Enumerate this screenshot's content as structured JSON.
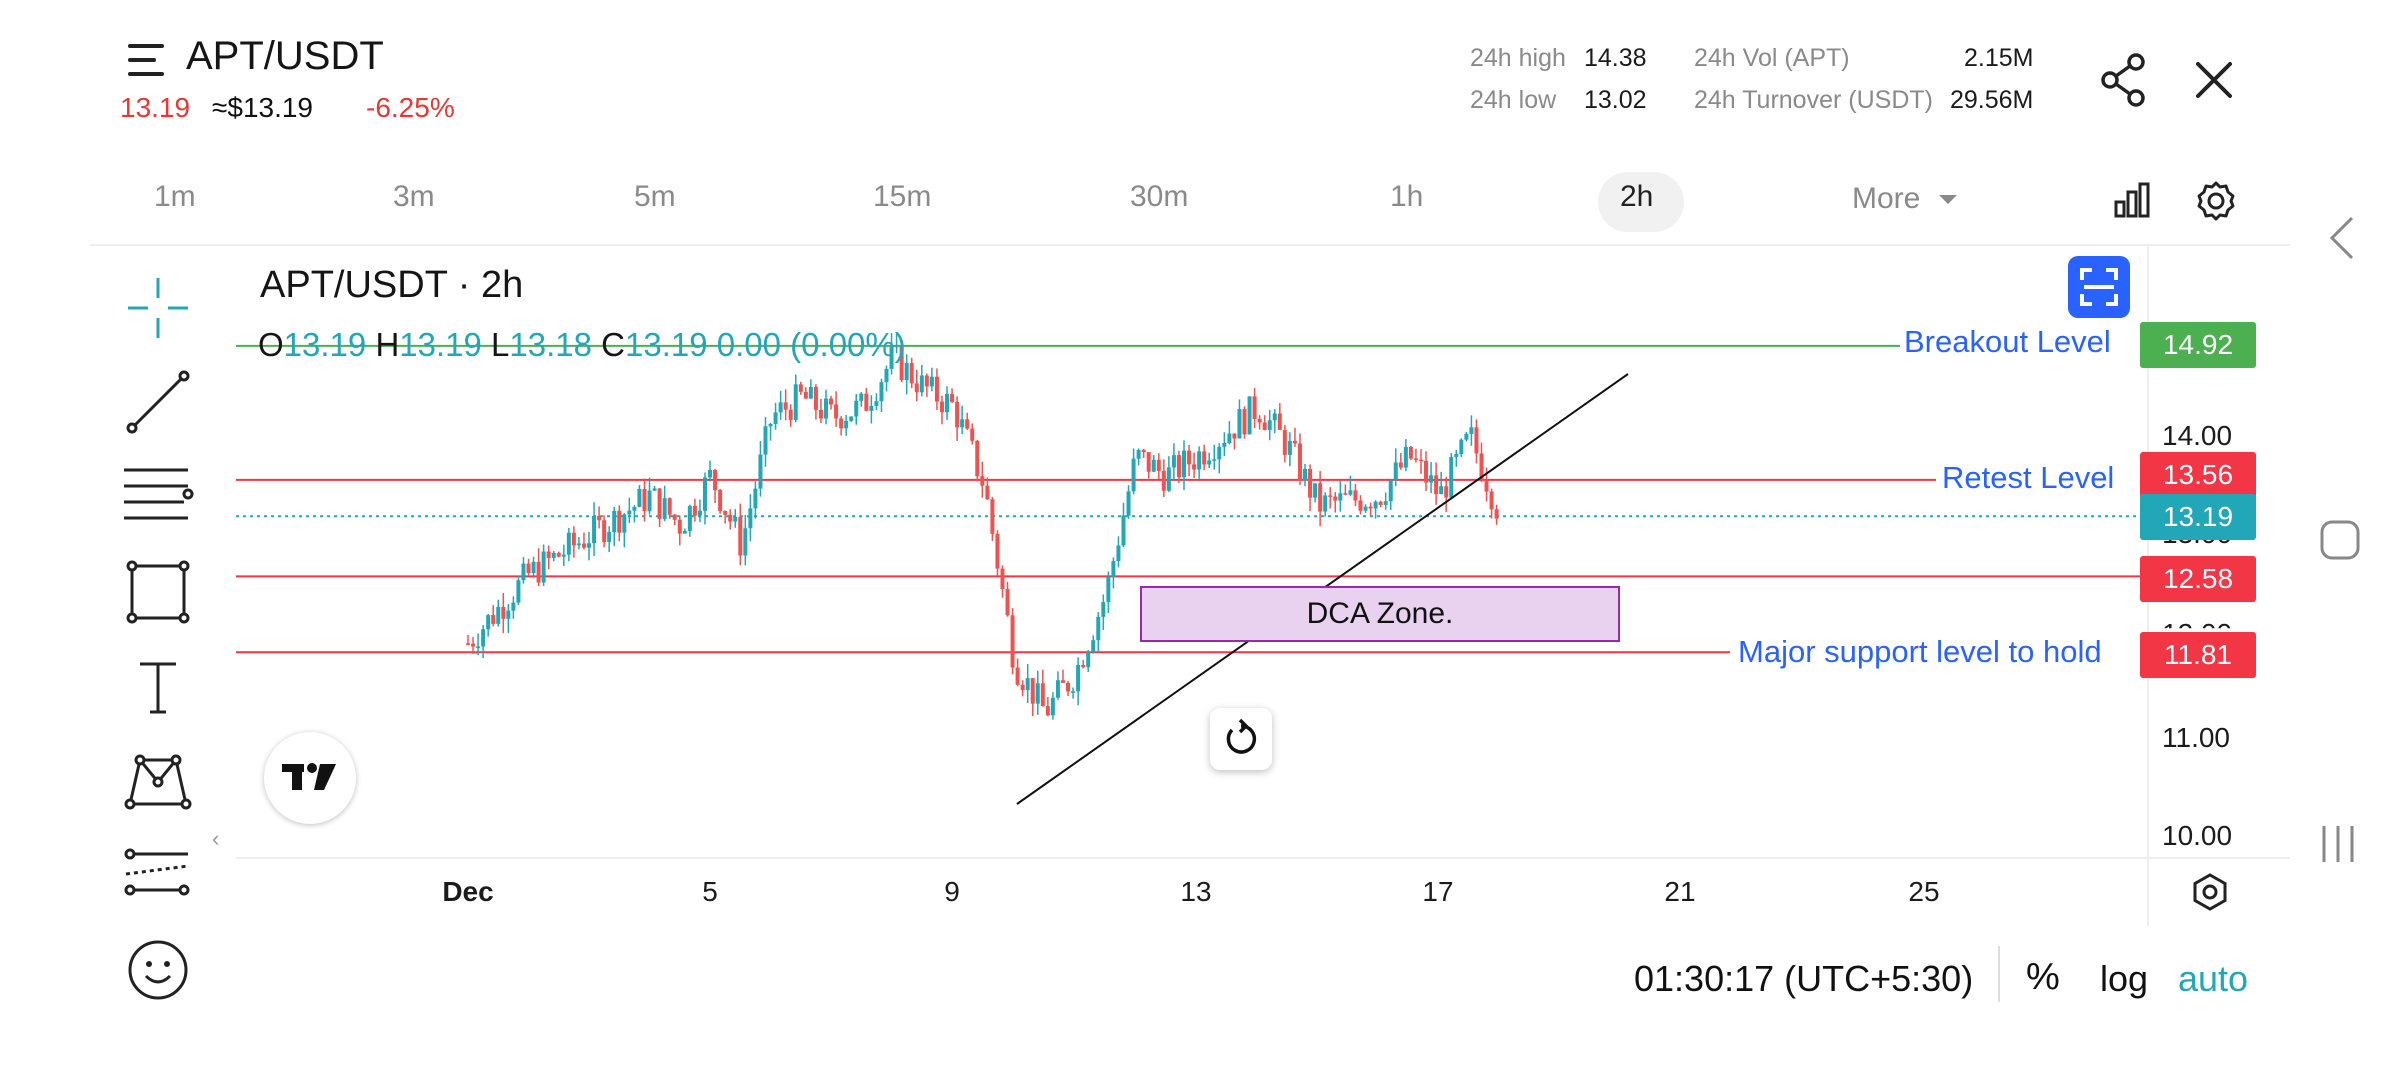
{
  "header": {
    "pair": "APT/USDT",
    "last_price": "13.19",
    "usd_price": "≈$13.19",
    "change_pct": "-6.25%",
    "stats": {
      "high_label": "24h high",
      "high_value": "14.38",
      "low_label": "24h low",
      "low_value": "13.02",
      "vol_label": "24h Vol (APT)",
      "vol_value": "2.15M",
      "turnover_label": "24h Turnover (USDT)",
      "turnover_value": "29.56M"
    },
    "icons": {
      "menu": "hamburger-icon",
      "share": "share-icon",
      "close": "close-icon"
    }
  },
  "intervals": {
    "items": [
      "1m",
      "3m",
      "5m",
      "15m",
      "30m",
      "1h",
      "2h"
    ],
    "active": "2h",
    "more_label": "More",
    "icons": {
      "chart_type": "bar-chart-icon",
      "settings": "gear-icon"
    }
  },
  "toolbar": {
    "tools": [
      "crosshair-icon",
      "trend-line-icon",
      "fib-lines-icon",
      "rectangle-icon",
      "text-tool-icon",
      "pattern-icon",
      "forecast-icon",
      "emoji-icon"
    ]
  },
  "chart": {
    "title": "APT/USDT · 2h",
    "ohlc": {
      "o_label": "O",
      "o": "13.19",
      "h_label": "H",
      "h": "13.19",
      "l_label": "L",
      "l": "13.18",
      "c_label": "C",
      "c": "13.19",
      "change": "0.00 (0.00%)"
    },
    "levels": [
      {
        "label": "Breakout Level",
        "price": "14.92",
        "color": "#4caf50"
      },
      {
        "label": "Retest Level",
        "price": "13.56",
        "color": "#f23645"
      },
      {
        "label": "",
        "price": "13.19",
        "color": "#22a7b8"
      },
      {
        "label": "",
        "price": "12.58",
        "color": "#f23645"
      },
      {
        "label": "Major support level to hold",
        "price": "11.81",
        "color": "#f23645"
      }
    ],
    "axis_prices": [
      "14.00",
      "13.00",
      "12.00",
      "11.00",
      "10.00"
    ],
    "dates": [
      "Dec",
      "5",
      "9",
      "13",
      "17",
      "21",
      "25"
    ],
    "zone_label": "DCA Zone.",
    "colors": {
      "up": "#26a69a",
      "up_alt": "#22a7b8",
      "down": "#ef5350",
      "accent": "#2962ff",
      "zone_fill": "#e8d2f0",
      "zone_border": "#9c27b0"
    }
  },
  "chart_data": {
    "type": "candlestick",
    "title": "APT/USDT · 2h",
    "x_ticks": [
      "Dec",
      "5",
      "9",
      "13",
      "17",
      "21",
      "25"
    ],
    "y_ticks": [
      14.0,
      13.0,
      12.0,
      11.0,
      10.0
    ],
    "horizontal_lines": [
      14.92,
      13.56,
      13.19,
      12.58,
      11.81
    ],
    "close_path": [
      [
        "Dec 1",
        11.9
      ],
      [
        "Dec 2",
        12.6
      ],
      [
        "Dec 3",
        13.0
      ],
      [
        "Dec 4",
        13.4
      ],
      [
        "Dec 4.5",
        13.1
      ],
      [
        "Dec 5",
        13.6
      ],
      [
        "Dec 5.5",
        12.9
      ],
      [
        "Dec 6",
        14.2
      ],
      [
        "Dec 6.5",
        14.4
      ],
      [
        "Dec 7",
        14.2
      ],
      [
        "Dec 7.5",
        14.3
      ],
      [
        "Dec 8",
        14.8
      ],
      [
        "Dec 8.5",
        14.5
      ],
      [
        "Dec 9",
        14.3
      ],
      [
        "Dec 9.5",
        13.5
      ],
      [
        "Dec 10",
        11.7
      ],
      [
        "Dec 10.5",
        11.2
      ],
      [
        "Dec 11",
        11.6
      ],
      [
        "Dec 11.5",
        12.4
      ],
      [
        "Dec 12",
        13.8
      ],
      [
        "Dec 12.5",
        13.6
      ],
      [
        "Dec 13",
        13.8
      ],
      [
        "Dec 14",
        14.3
      ],
      [
        "Dec 14.5",
        13.9
      ],
      [
        "Dec 15",
        13.3
      ],
      [
        "Dec 16",
        13.4
      ],
      [
        "Dec 16.5",
        13.8
      ],
      [
        "Dec 17",
        13.4
      ],
      [
        "Dec 17.5",
        14.0
      ],
      [
        "Dec 18",
        13.19
      ]
    ],
    "trendline": [
      [
        "Dec 10",
        10.3
      ],
      [
        "Dec 20.5",
        14.7
      ]
    ],
    "zone": {
      "label": "DCA Zone.",
      "x_from": "Dec 12",
      "x_to": "Dec 20.5",
      "y_low": 12.0,
      "y_high": 12.5
    }
  },
  "footer": {
    "time": "01:30:17 (UTC+5:30)",
    "pct_label": "%",
    "log_label": "log",
    "auto_label": "auto"
  }
}
